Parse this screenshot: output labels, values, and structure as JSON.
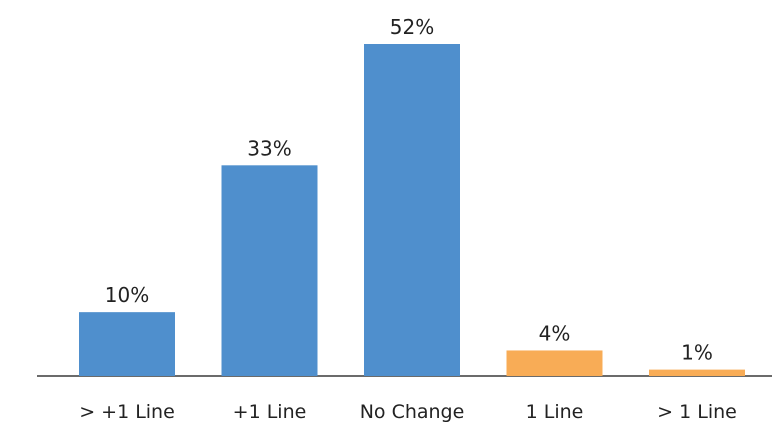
{
  "chart_data": {
    "type": "bar",
    "categories": [
      "> +1 Line",
      "+1 Line",
      "No Change",
      "1 Line",
      "> 1 Line"
    ],
    "values": [
      10,
      33,
      52,
      4,
      1
    ],
    "value_labels": [
      "10%",
      "33%",
      "52%",
      "4%",
      "1%"
    ],
    "unit": "%",
    "colors": [
      "#4f8fcd",
      "#4f8fcd",
      "#4f8fcd",
      "#f8ac56",
      "#f8ac56"
    ],
    "axis_color": "#3a3a3a",
    "ylim": [
      0,
      55
    ],
    "grid": false,
    "legend": "none",
    "title": "",
    "xlabel": "",
    "ylabel": ""
  }
}
